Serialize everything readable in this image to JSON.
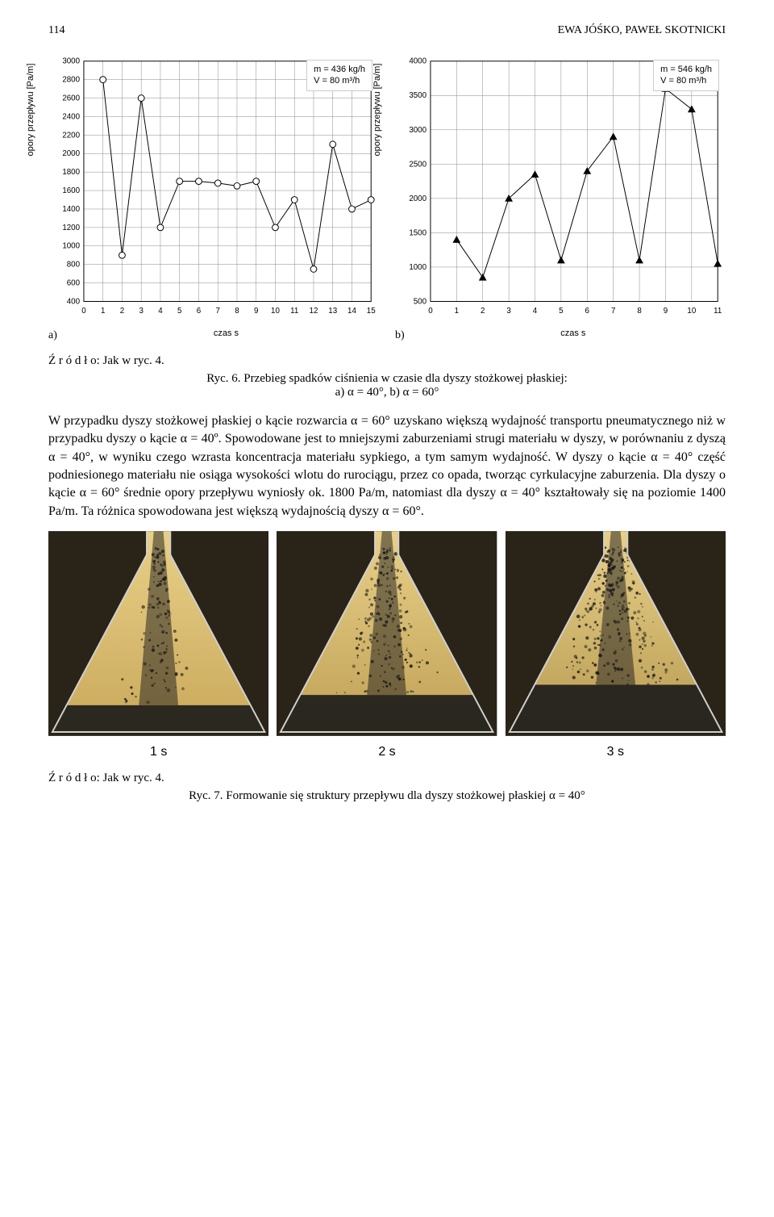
{
  "header": {
    "page_number": "114",
    "authors": "EWA JÓŚKO, PAWEŁ SKOTNICKI"
  },
  "chart_a": {
    "ylabel": "opory przepływu [Pa/m]",
    "xlabel": "czas s",
    "panel_label": "a)",
    "param_line1": "m = 436 kg/h",
    "param_line2": "V = 80 m³/h",
    "ylim_min": 400,
    "ylim_max": 3000,
    "yticks": [
      400,
      600,
      800,
      1000,
      1200,
      1400,
      1600,
      1800,
      2000,
      2200,
      2400,
      2600,
      2800,
      3000
    ],
    "xlim_min": 0,
    "xlim_max": 15,
    "xticks": [
      0,
      1,
      2,
      3,
      4,
      5,
      6,
      7,
      8,
      9,
      10,
      11,
      12,
      13,
      14,
      15
    ],
    "values": [
      2800,
      900,
      2600,
      1200,
      1700,
      1700,
      1680,
      1650,
      1700,
      1200,
      1500,
      750,
      2100,
      1400,
      1500
    ],
    "grid_color": "#888888",
    "line_color": "#000000",
    "marker": "circle",
    "marker_color": "#ffffff",
    "marker_border": "#000000"
  },
  "chart_b": {
    "ylabel": "opory przepływu [Pa/m]",
    "xlabel": "czas s",
    "panel_label": "b)",
    "param_line1": "m = 546 kg/h",
    "param_line2": "V = 80 m³/h",
    "ylim_min": 500,
    "ylim_max": 4000,
    "yticks": [
      500,
      1000,
      1500,
      2000,
      2500,
      3000,
      3500,
      4000
    ],
    "xlim_min": 0,
    "xlim_max": 11,
    "xticks": [
      0,
      1,
      2,
      3,
      4,
      5,
      6,
      7,
      8,
      9,
      10,
      11
    ],
    "values": [
      1400,
      850,
      2000,
      2350,
      1100,
      2400,
      2900,
      1100,
      3600,
      3300,
      1050
    ],
    "grid_color": "#888888",
    "line_color": "#000000",
    "marker": "triangle",
    "marker_fill": "#000000"
  },
  "source_line": "Ź r ó d ł o: Jak w ryc. 4.",
  "ryc6_caption": "Ryc. 6. Przebieg spadków ciśnienia w czasie dla dyszy stożkowej płaskiej:\na) α = 40°, b) α = 60°",
  "paragraph": "W przypadku dyszy stożkowej płaskiej o kącie rozwarcia α = 60° uzyskano większą wydajność transportu pneumatycznego niż w przypadku dyszy o kącie α = 40º. Spowodowane jest to mniejszymi zaburzeniami strugi materiału w dyszy, w porównaniu z dyszą α = 40°, w wyniku czego wzrasta koncentracja materiału sypkiego, a tym samym wydajność. W dyszy o kącie α = 40° część podniesionego materiału nie osiąga wysokości wlotu do rurociągu, przez co opada, tworząc cyrkulacyjne zaburzenia. Dla dyszy o kącie α = 60° średnie opory przepływu wyniosły ok. 1800 Pa/m, natomiast dla dyszy α = 40° kształtowały się na poziomie 1400 Pa/m. Ta różnica spowodowana jest większą wydajnością dyszy α = 60°.",
  "photos": [
    {
      "label": "1 s",
      "base_color": "#c9a85a",
      "particles": 120,
      "spread": 0.25,
      "fill_height": 0.15
    },
    {
      "label": "2 s",
      "base_color": "#bfa055",
      "particles": 200,
      "spread": 0.45,
      "fill_height": 0.2
    },
    {
      "label": "3 s",
      "base_color": "#b79a52",
      "particles": 280,
      "spread": 0.6,
      "fill_height": 0.25
    }
  ],
  "source_line2": "Ź r ó d ł o: Jak w ryc. 4.",
  "ryc7_caption": "Ryc. 7. Formowanie się struktury przepływu dla dyszy stożkowej płaskiej α = 40°"
}
